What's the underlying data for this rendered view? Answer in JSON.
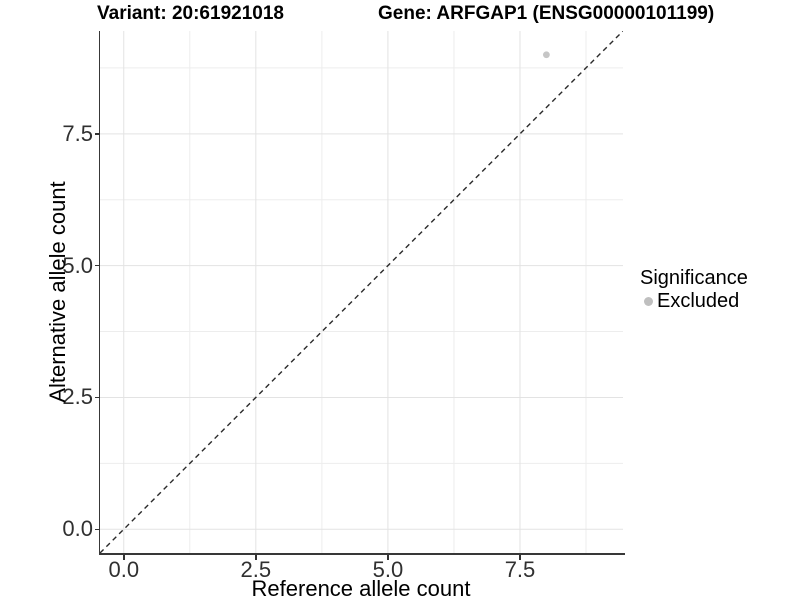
{
  "header": {
    "variant_title": "Variant: 20:61921018",
    "gene_title": "Gene: ARFGAP1 (ENSG00000101199)"
  },
  "axes": {
    "x_label": "Reference allele count",
    "y_label": "Alternative allele count"
  },
  "legend": {
    "title": "Significance",
    "items": [
      {
        "label": "Excluded",
        "color": "#bfbfbf"
      }
    ]
  },
  "colors": {
    "point": "#c6c6c6",
    "identity_line": "#2a2a2a",
    "axis_line": "#383838",
    "grid_major": "#e3e3e3",
    "grid_minor": "#ededed",
    "tick_text": "#303030"
  },
  "chart_data": {
    "type": "scatter",
    "title": "Variant: 20:61921018 / Gene: ARFGAP1 (ENSG00000101199)",
    "xlabel": "Reference allele count",
    "ylabel": "Alternative allele count",
    "xlim": [
      -0.45,
      9.45
    ],
    "ylim": [
      -0.45,
      9.45
    ],
    "major_ticks": [
      0,
      2.5,
      5,
      7.5
    ],
    "minor_ticks": [
      1.25,
      3.75,
      6.25,
      8.75
    ],
    "x_tick_labels": [
      "0.0",
      "2.5",
      "5.0",
      "7.5"
    ],
    "y_tick_labels": [
      "0.0",
      "2.5",
      "5.0",
      "7.5"
    ],
    "grid": true,
    "legend_position": "right",
    "series": [
      {
        "name": "Excluded",
        "color": "#c6c6c6",
        "points": [
          {
            "x": 8,
            "y": 9
          }
        ]
      }
    ],
    "reference_line": {
      "type": "identity",
      "equation": "y = x",
      "style": "dashed"
    }
  }
}
